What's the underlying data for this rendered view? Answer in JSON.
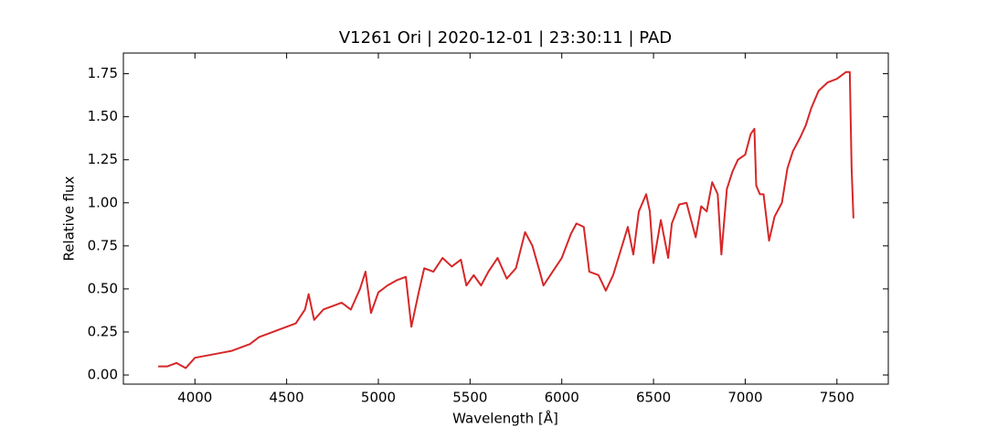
{
  "chart_data": {
    "type": "line",
    "title": "V1261 Ori | 2020-12-01 | 23:30:11 | PAD",
    "x_label": "Wavelength [Å]",
    "y_label": "Relative flux",
    "x": [
      3800,
      3850,
      3900,
      3950,
      4000,
      4050,
      4100,
      4150,
      4200,
      4250,
      4300,
      4350,
      4400,
      4450,
      4500,
      4550,
      4600,
      4620,
      4650,
      4700,
      4750,
      4800,
      4850,
      4900,
      4930,
      4960,
      5000,
      5050,
      5100,
      5150,
      5180,
      5220,
      5250,
      5300,
      5350,
      5400,
      5450,
      5480,
      5520,
      5560,
      5600,
      5650,
      5700,
      5750,
      5800,
      5840,
      5880,
      5900,
      5950,
      6000,
      6050,
      6080,
      6120,
      6150,
      6200,
      6240,
      6280,
      6320,
      6360,
      6390,
      6420,
      6460,
      6480,
      6500,
      6540,
      6580,
      6600,
      6640,
      6680,
      6700,
      6730,
      6760,
      6790,
      6820,
      6850,
      6870,
      6900,
      6930,
      6960,
      7000,
      7030,
      7050,
      7060,
      7080,
      7100,
      7130,
      7160,
      7200,
      7230,
      7260,
      7300,
      7330,
      7360,
      7400,
      7450,
      7500,
      7550,
      7570,
      7580,
      7590
    ],
    "series": [
      {
        "name": "V1261 Ori",
        "color": "#d62728",
        "values": [
          0.05,
          0.05,
          0.07,
          0.04,
          0.1,
          0.11,
          0.12,
          0.13,
          0.14,
          0.16,
          0.18,
          0.22,
          0.24,
          0.26,
          0.28,
          0.3,
          0.38,
          0.47,
          0.32,
          0.38,
          0.4,
          0.42,
          0.38,
          0.5,
          0.6,
          0.36,
          0.48,
          0.52,
          0.55,
          0.57,
          0.28,
          0.48,
          0.62,
          0.6,
          0.68,
          0.63,
          0.67,
          0.52,
          0.58,
          0.52,
          0.6,
          0.68,
          0.56,
          0.62,
          0.83,
          0.75,
          0.6,
          0.52,
          0.6,
          0.68,
          0.82,
          0.88,
          0.86,
          0.6,
          0.58,
          0.49,
          0.58,
          0.72,
          0.86,
          0.7,
          0.95,
          1.05,
          0.95,
          0.65,
          0.9,
          0.68,
          0.88,
          0.99,
          1.0,
          0.92,
          0.8,
          0.98,
          0.95,
          1.12,
          1.05,
          0.7,
          1.08,
          1.18,
          1.25,
          1.28,
          1.4,
          1.43,
          1.1,
          1.05,
          1.05,
          0.78,
          0.92,
          1.0,
          1.2,
          1.3,
          1.38,
          1.45,
          1.55,
          1.65,
          1.7,
          1.72,
          1.76,
          1.76,
          1.2,
          0.91
        ]
      }
    ],
    "xlim": [
      3610,
      7780
    ],
    "ylim": [
      -0.053,
      1.87
    ],
    "xticks": [
      4000,
      4500,
      5000,
      5500,
      6000,
      6500,
      7000,
      7500
    ],
    "yticks": [
      {
        "value": 0,
        "label": "0.00"
      },
      {
        "value": 0.25,
        "label": "0.25"
      },
      {
        "value": 0.5,
        "label": "0.50"
      },
      {
        "value": 0.75,
        "label": "0.75"
      },
      {
        "value": 1,
        "label": "1.00"
      },
      {
        "value": 1.25,
        "label": "1.25"
      },
      {
        "value": 1.5,
        "label": "1.50"
      },
      {
        "value": 1.75,
        "label": "1.75"
      }
    ]
  }
}
